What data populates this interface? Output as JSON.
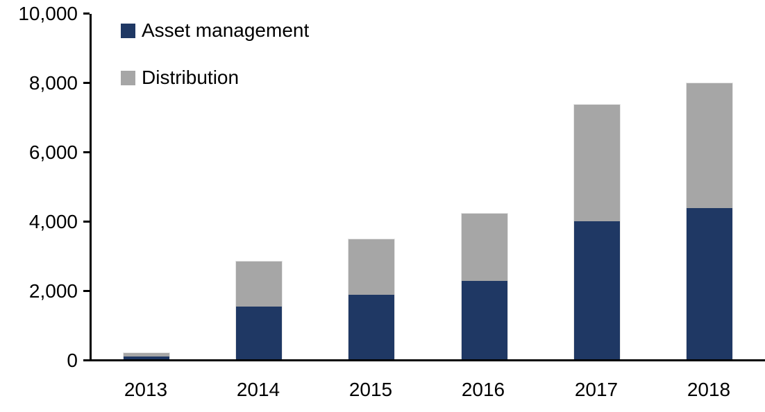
{
  "chart_data": {
    "type": "bar",
    "stacked": true,
    "title": "",
    "xlabel": "",
    "ylabel": "",
    "categories": [
      "2013",
      "2014",
      "2015",
      "2016",
      "2017",
      "2018"
    ],
    "series": [
      {
        "name": "Asset management",
        "color": "#1F3864",
        "values": [
          110,
          1560,
          1900,
          2300,
          4020,
          4400
        ]
      },
      {
        "name": "Distribution",
        "color": "#A6A6A6",
        "values": [
          90,
          1300,
          1600,
          1940,
          3350,
          3600
        ]
      }
    ],
    "totals": [
      200,
      2860,
      3500,
      4240,
      7370,
      8000
    ],
    "ylim": [
      0,
      10000
    ],
    "ytick_interval": 2000,
    "yticks": [
      {
        "value": 0,
        "label": "0"
      },
      {
        "value": 2000,
        "label": "2,000"
      },
      {
        "value": 4000,
        "label": "4,000"
      },
      {
        "value": 6000,
        "label": "6,000"
      },
      {
        "value": 8000,
        "label": "8,000"
      },
      {
        "value": 10000,
        "label": "10,000"
      }
    ],
    "grid": false,
    "legend_position": "top-left-inside",
    "axis_color": "#000000",
    "bar_outline_color": "#E7E7E7",
    "background_color": "#FFFFFF"
  }
}
